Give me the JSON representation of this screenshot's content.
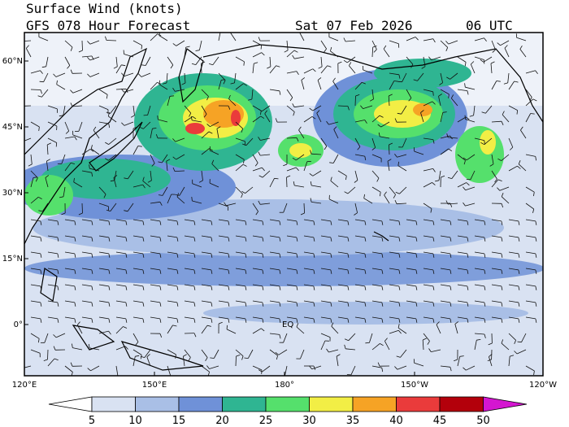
{
  "header": {
    "title": "Surface Wind (knots)",
    "subtitle": "GFS 078 Hour Forecast",
    "date": "Sat 07 Feb 2026",
    "time": "06 UTC"
  },
  "map": {
    "lat_labels": [
      "60°N",
      "45°N",
      "30°N",
      "15°N",
      "0°"
    ],
    "lon_labels": [
      "120°E",
      "150°E",
      "180°",
      "150°W",
      "120°W"
    ],
    "equator_label": "EQ"
  },
  "colorbar": {
    "ticks": [
      5,
      10,
      15,
      20,
      25,
      30,
      35,
      40,
      45,
      50
    ],
    "colors": [
      "#ffffff",
      "#d9e2f2",
      "#a9bfe6",
      "#6f91d8",
      "#2fb592",
      "#55e06c",
      "#f2ee45",
      "#f6a325",
      "#ea3b3b",
      "#b3000b",
      "#d416d0"
    ]
  }
}
